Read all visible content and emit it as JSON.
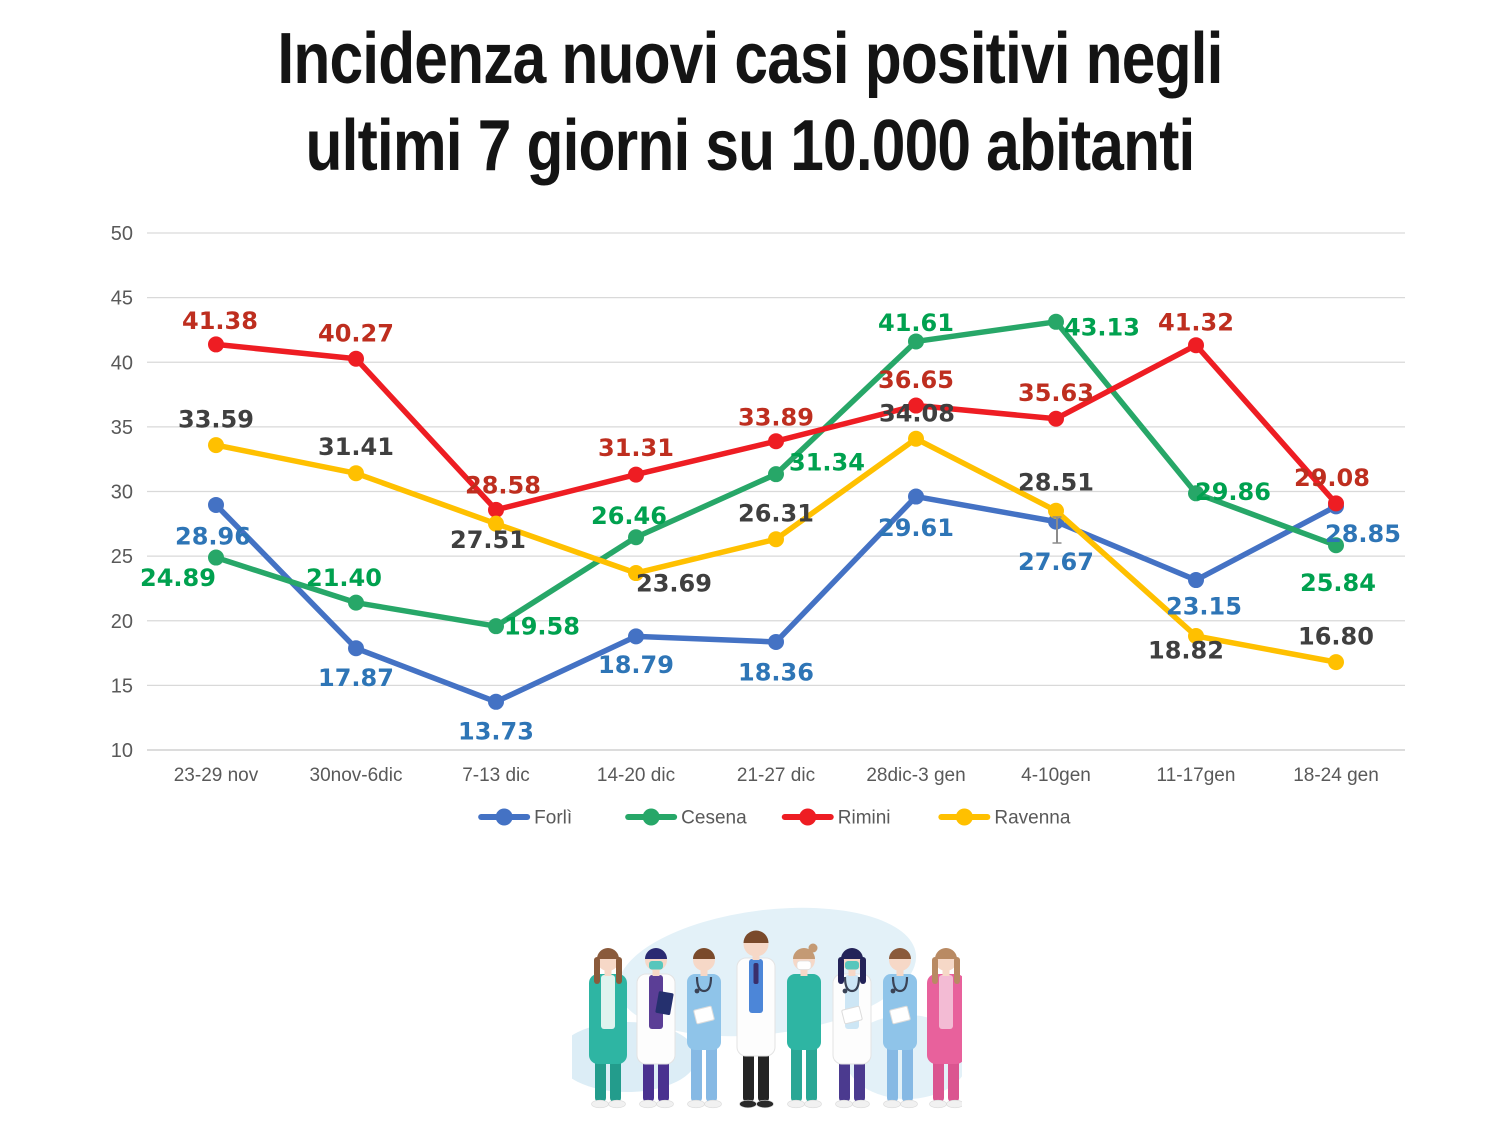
{
  "title": {
    "line1": "Incidenza nuovi casi positivi negli",
    "line2": "ultimi 7 giorni su 10.000 abitanti"
  },
  "chart_data": {
    "type": "line",
    "title": "Incidenza nuovi casi positivi negli ultimi 7 giorni su 10.000 abitanti",
    "categories": [
      "23-29 nov",
      "30nov-6dic",
      "7-13 dic",
      "14-20 dic",
      "21-27 dic",
      "28dic-3 gen",
      "4-10gen",
      "11-17gen",
      "18-24 gen"
    ],
    "series": [
      {
        "name": "Forlì",
        "color": "#4472C4",
        "label_color": "#2E75B6",
        "values": [
          28.96,
          17.87,
          13.73,
          18.79,
          18.36,
          29.61,
          27.67,
          23.15,
          28.85
        ],
        "label_offsets": [
          [
            -3,
            31
          ],
          [
            0,
            29
          ],
          [
            0,
            29
          ],
          [
            0,
            28
          ],
          [
            0,
            30
          ],
          [
            0,
            31
          ],
          [
            0,
            40
          ],
          [
            8,
            26
          ],
          [
            27,
            27
          ]
        ]
      },
      {
        "name": "Cesena",
        "color": "#27A768",
        "label_color": "#00A14F",
        "values": [
          24.89,
          21.4,
          19.58,
          26.46,
          31.34,
          41.61,
          43.13,
          29.86,
          25.84
        ],
        "label_offsets": [
          [
            -38,
            20
          ],
          [
            -12,
            -25
          ],
          [
            46,
            0
          ],
          [
            -7,
            -22
          ],
          [
            51,
            -12
          ],
          [
            0,
            -19
          ],
          [
            46,
            5
          ],
          [
            37,
            -2
          ],
          [
            2,
            37
          ]
        ]
      },
      {
        "name": "Rimini",
        "color": "#EE1D23",
        "label_color": "#BE2E1F",
        "values": [
          41.38,
          40.27,
          28.58,
          31.31,
          33.89,
          36.65,
          35.63,
          41.32,
          29.08
        ],
        "label_offsets": [
          [
            4,
            -24
          ],
          [
            0,
            -26
          ],
          [
            7,
            -25
          ],
          [
            0,
            -27
          ],
          [
            0,
            -24
          ],
          [
            0,
            -26
          ],
          [
            0,
            -26
          ],
          [
            0,
            -23
          ],
          [
            -4,
            -26
          ]
        ]
      },
      {
        "name": "Ravenna",
        "color": "#FFC000",
        "label_color": "#3F3F3F",
        "values": [
          33.59,
          31.41,
          27.51,
          23.69,
          26.31,
          34.08,
          28.51,
          18.82,
          16.8
        ],
        "label_offsets": [
          [
            0,
            -26
          ],
          [
            0,
            -27
          ],
          [
            -8,
            16
          ],
          [
            38,
            10
          ],
          [
            0,
            -26
          ],
          [
            1,
            -26
          ],
          [
            0,
            -29
          ],
          [
            -10,
            14
          ],
          [
            0,
            -26
          ]
        ]
      }
    ],
    "ylim": [
      10,
      50
    ],
    "yticks": [
      10,
      15,
      20,
      25,
      30,
      35,
      40,
      45,
      50
    ],
    "grid": true,
    "grid_color": "#D9D9D9",
    "axis_text_color": "#595959",
    "legend_position": "bottom",
    "value_decimals": 2
  },
  "illustration_alt": "Medical team illustration"
}
